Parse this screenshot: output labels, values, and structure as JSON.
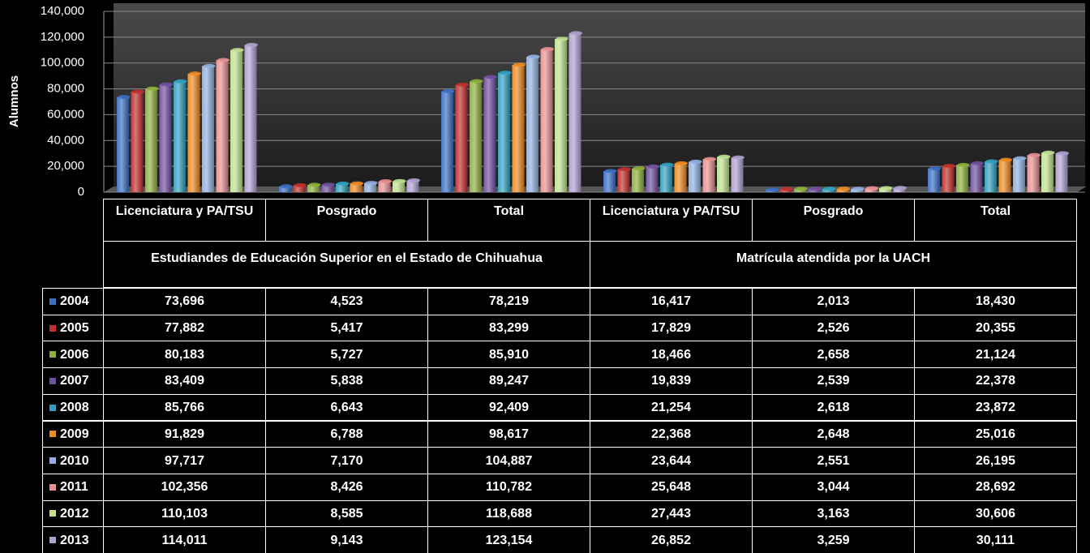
{
  "chart_data": {
    "type": "bar",
    "ylabel": "Alumnos",
    "categories": [
      "Licenciatura  y PA/TSU",
      "Posgrado",
      "Total",
      "Licenciatura  y PA/TSU",
      "Posgrado",
      "Total"
    ],
    "groups": [
      "Estudiandes de Educación Superior en el Estado de Chihuahua",
      "Matrícula atendida por la UACH"
    ],
    "ylim": [
      0,
      140000
    ],
    "yticks": [
      0,
      {
        "value": 20000,
        "label": "20,000"
      },
      {
        "value": 40000,
        "label": "40,000"
      },
      {
        "value": 60000,
        "label": "60,000"
      },
      {
        "value": 80000,
        "label": "80,000"
      },
      {
        "value": 100000,
        "label": "100,000"
      },
      {
        "value": 120000,
        "label": "120,000"
      },
      {
        "value": 140000,
        "label": "140,000"
      }
    ],
    "grid": true,
    "series": [
      {
        "name": "2004",
        "color": "#3a6fc4",
        "values": [
          73696,
          4523,
          78219,
          16417,
          2013,
          18430
        ],
        "value_labels": [
          "73,696",
          "4,523",
          "78,219",
          "16,417",
          "2,013",
          "18,430"
        ]
      },
      {
        "name": "2005",
        "color": "#c0302c",
        "values": [
          77882,
          5417,
          83299,
          17829,
          2526,
          20355
        ],
        "value_labels": [
          "77,882",
          "5,417",
          "83,299",
          "17,829",
          "2,526",
          "20,355"
        ]
      },
      {
        "name": "2006",
        "color": "#8db03a",
        "values": [
          80183,
          5727,
          85910,
          18466,
          2658,
          21124
        ],
        "value_labels": [
          "80,183",
          "5,727",
          "85,910",
          "18,466",
          "2,658",
          "21,124"
        ]
      },
      {
        "name": "2007",
        "color": "#7050a0",
        "values": [
          83409,
          5838,
          89247,
          19839,
          2539,
          22378
        ],
        "value_labels": [
          "83,409",
          "5,838",
          "89,247",
          "19,839",
          "2,539",
          "22,378"
        ]
      },
      {
        "name": "2008",
        "color": "#30a0c0",
        "values": [
          85766,
          6643,
          92409,
          21254,
          2618,
          23872
        ],
        "value_labels": [
          "85,766",
          "6,643",
          "92,409",
          "21,254",
          "2,618",
          "23,872"
        ]
      },
      {
        "name": "2009",
        "color": "#f08a20",
        "values": [
          91829,
          6788,
          98617,
          22368,
          2648,
          25016
        ],
        "value_labels": [
          "91,829",
          "6,788",
          "98,617",
          "22,368",
          "2,648",
          "25,016"
        ]
      },
      {
        "name": "2010",
        "color": "#8fb0e0",
        "values": [
          97717,
          7170,
          104887,
          23644,
          2551,
          26195
        ],
        "value_labels": [
          "97,717",
          "7,170",
          "104,887",
          "23,644",
          "2,551",
          "26,195"
        ]
      },
      {
        "name": "2011",
        "color": "#e89090",
        "values": [
          102356,
          8426,
          110782,
          25648,
          3044,
          28692
        ],
        "value_labels": [
          "102,356",
          "8,426",
          "110,782",
          "25,648",
          "3,044",
          "28,692"
        ]
      },
      {
        "name": "2012",
        "color": "#c0e090",
        "values": [
          110103,
          8585,
          118688,
          27443,
          3163,
          30606
        ],
        "value_labels": [
          "110,103",
          "8,585",
          "118,688",
          "27,443",
          "3,163",
          "30,606"
        ]
      },
      {
        "name": "2013",
        "color": "#b0a0d0",
        "values": [
          114011,
          9143,
          123154,
          26852,
          3259,
          30111
        ],
        "value_labels": [
          "114,011",
          "9,143",
          "123,154",
          "26,852",
          "3,259",
          "30,111"
        ]
      }
    ]
  }
}
